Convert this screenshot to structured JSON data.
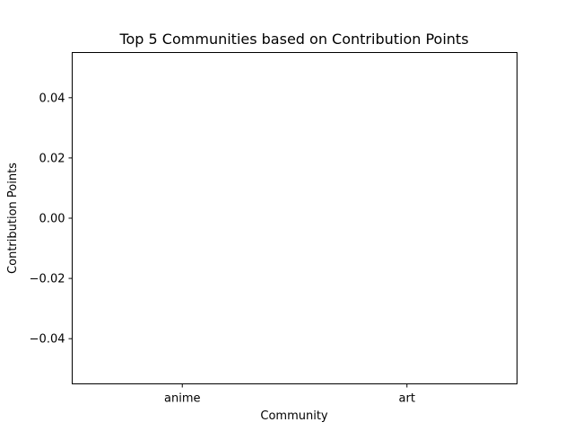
{
  "chart_data": {
    "type": "bar",
    "title": "Top 5 Communities based on Contribution Points",
    "xlabel": "Community",
    "ylabel": "Contribution Points",
    "categories": [
      "anime",
      "art"
    ],
    "values": [
      0,
      0
    ],
    "ylim": [
      -0.055,
      0.055
    ],
    "yticks": [
      0.04,
      0.02,
      0.0,
      -0.02,
      -0.04
    ],
    "ytick_labels": [
      "0.04",
      "0.02",
      "0.00",
      "−0.02",
      "−0.04"
    ],
    "grid": false,
    "bar_color": "#1f77b4"
  }
}
